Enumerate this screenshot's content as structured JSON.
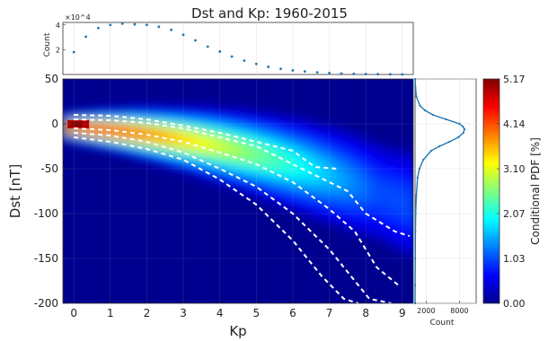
{
  "chart_data": [
    {
      "type": "heatmap",
      "title": "Dst and Kp: 1960-2015",
      "xlabel": "Kp",
      "ylabel": "Dst [nT]",
      "xlim": [
        -0.3,
        9.3
      ],
      "ylim": [
        -200,
        50
      ],
      "xticks": [
        "0",
        "1",
        "2",
        "3",
        "4",
        "5",
        "6",
        "7",
        "8",
        "9"
      ],
      "yticks": [
        "50",
        "0",
        "-50",
        "-100",
        "-150",
        "-200"
      ],
      "peak": {
        "kp": 0,
        "dst": 0,
        "value": 5.17
      },
      "contours": [
        {
          "name": "",
          "kp": [
            0,
            1,
            2,
            3,
            4,
            5,
            6,
            6.6,
            7.2
          ],
          "dst": [
            10,
            9,
            5,
            -2,
            -10,
            -20,
            -30,
            -48,
            -50
          ]
        },
        {
          "name": "",
          "kp": [
            0,
            1,
            2,
            3,
            4,
            5,
            6,
            7,
            7.5,
            8,
            8.8,
            9.2
          ],
          "dst": [
            5,
            4,
            1,
            -5,
            -15,
            -25,
            -45,
            -65,
            -75,
            -100,
            -120,
            -125
          ]
        },
        {
          "name": "",
          "kp": [
            0,
            1,
            2,
            3,
            4,
            5,
            6,
            7,
            7.7,
            8.3,
            8.9
          ],
          "dst": [
            -5,
            -7,
            -12,
            -20,
            -32,
            -45,
            -65,
            -95,
            -120,
            -160,
            -180
          ]
        },
        {
          "name": "",
          "kp": [
            0,
            1,
            2,
            3,
            4,
            5,
            6,
            7,
            7.6,
            8.1,
            8.7
          ],
          "dst": [
            -10,
            -13,
            -20,
            -32,
            -50,
            -70,
            -100,
            -140,
            -170,
            -195,
            -200
          ]
        },
        {
          "name": "",
          "kp": [
            0,
            1,
            2,
            3,
            4,
            5,
            6,
            6.8,
            7.4,
            7.8
          ],
          "dst": [
            -15,
            -20,
            -28,
            -40,
            -62,
            -90,
            -130,
            -170,
            -195,
            -200
          ]
        }
      ]
    },
    {
      "type": "scatter",
      "ylabel": "Count",
      "y_multiplier": "×10^4",
      "yticks": [
        "4",
        "2"
      ],
      "ylim": [
        0,
        4.2
      ],
      "x": [
        0,
        0.33,
        0.67,
        1,
        1.33,
        1.67,
        2,
        2.33,
        2.67,
        3,
        3.33,
        3.67,
        4,
        4.33,
        4.67,
        5,
        5.33,
        5.67,
        6,
        6.33,
        6.67,
        7,
        7.33,
        7.67,
        8,
        8.33,
        8.67,
        9
      ],
      "y": [
        1.8,
        3.05,
        3.75,
        4.0,
        4.1,
        4.05,
        4.0,
        3.85,
        3.6,
        3.2,
        2.75,
        2.25,
        1.85,
        1.45,
        1.12,
        0.85,
        0.62,
        0.45,
        0.33,
        0.24,
        0.17,
        0.12,
        0.08,
        0.05,
        0.035,
        0.025,
        0.015,
        0.01
      ]
    },
    {
      "type": "line",
      "xlabel": "Count",
      "xticks": [
        "2000",
        "8000"
      ],
      "xlim": [
        0,
        11000
      ],
      "dst": [
        50,
        40,
        30,
        20,
        15,
        10,
        5,
        0,
        -3,
        -6,
        -10,
        -15,
        -20,
        -25,
        -30,
        -40,
        -50,
        -60,
        -80,
        -100,
        -120,
        -150,
        -180,
        -200
      ],
      "count": [
        20,
        80,
        250,
        900,
        1800,
        3200,
        5600,
        8000,
        8600,
        8900,
        8700,
        7800,
        6200,
        4400,
        2900,
        1500,
        800,
        450,
        220,
        110,
        60,
        30,
        15,
        8
      ]
    },
    {
      "type": "colorbar",
      "label": "Conditional PDF [%]",
      "ticks": [
        "5.17",
        "4.14",
        "3.10",
        "2.07",
        "1.03",
        "0.00"
      ],
      "vmin": 0,
      "vmax": 5.17
    }
  ]
}
